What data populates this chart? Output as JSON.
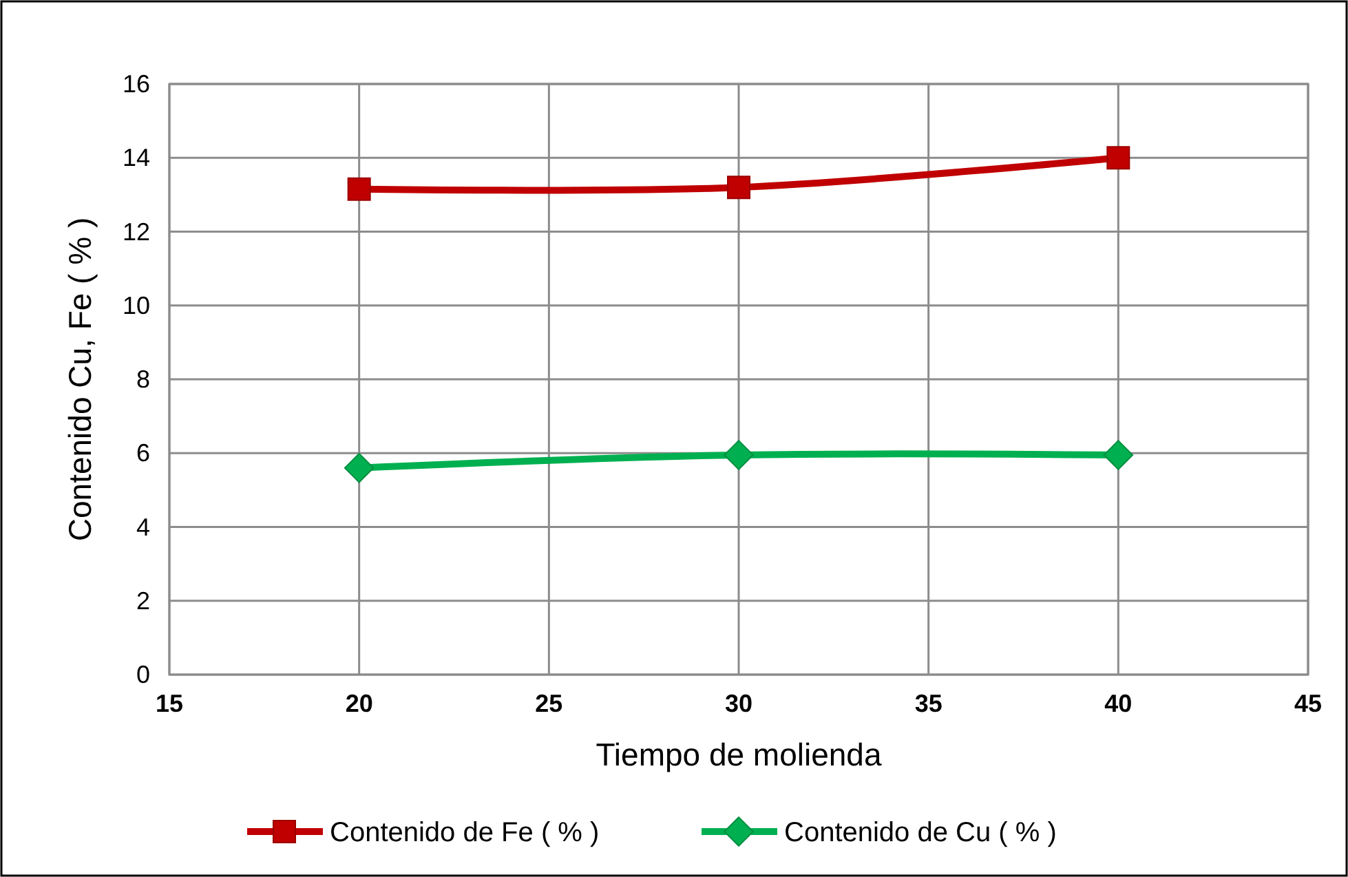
{
  "chart_data": {
    "type": "line",
    "xlabel": "Tiempo de molienda",
    "ylabel": "Contenido Cu, Fe  ( % )",
    "x": [
      20,
      30,
      40
    ],
    "series": [
      {
        "name": "Contenido de Fe ( % )",
        "color": "#c00000",
        "values": [
          13.15,
          13.2,
          14.0
        ],
        "marker": "square"
      },
      {
        "name": "Contenido de Cu ( % )",
        "color": "#00b050",
        "values": [
          5.6,
          5.95,
          5.95
        ],
        "marker": "diamond"
      }
    ],
    "xlim": [
      15,
      45
    ],
    "xticks": [
      15,
      20,
      25,
      30,
      35,
      40,
      45
    ],
    "ylim": [
      0,
      16
    ],
    "yticks": [
      0,
      2,
      4,
      6,
      8,
      10,
      12,
      14,
      16
    ],
    "grid": true,
    "legend": "bottom",
    "line_style": "solid"
  }
}
